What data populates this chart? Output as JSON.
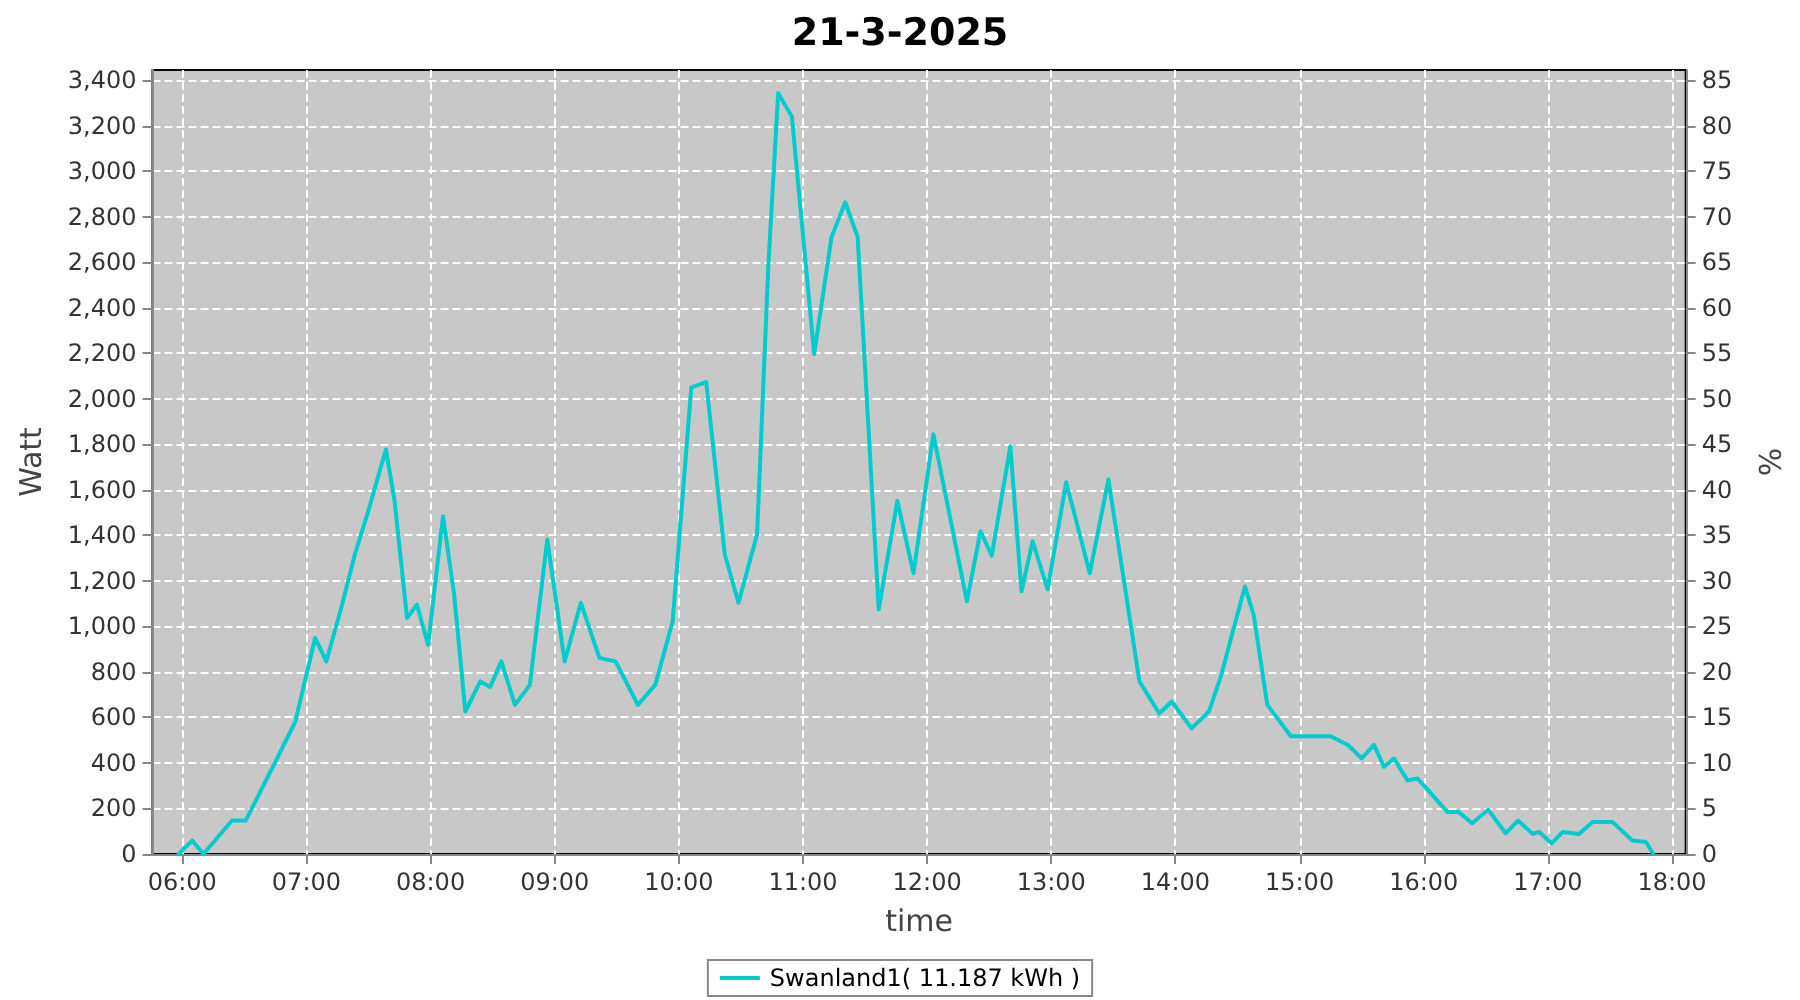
{
  "chart_data": {
    "type": "line",
    "title": "21-3-2025",
    "xlabel": "time",
    "ylabel": "Watt",
    "y2label": "%",
    "xlim": [
      5.76,
      18.11
    ],
    "xticks": [
      {
        "value": 6,
        "label": "06:00"
      },
      {
        "value": 7,
        "label": "07:00"
      },
      {
        "value": 8,
        "label": "08:00"
      },
      {
        "value": 9,
        "label": "09:00"
      },
      {
        "value": 10,
        "label": "10:00"
      },
      {
        "value": 11,
        "label": "11:00"
      },
      {
        "value": 12,
        "label": "12:00"
      },
      {
        "value": 13,
        "label": "13:00"
      },
      {
        "value": 14,
        "label": "14:00"
      },
      {
        "value": 15,
        "label": "15:00"
      },
      {
        "value": 16,
        "label": "16:00"
      },
      {
        "value": 17,
        "label": "17:00"
      },
      {
        "value": 18,
        "label": "18:00"
      }
    ],
    "ylim": [
      0,
      3444
    ],
    "yticks": [
      0,
      200,
      400,
      600,
      800,
      {
        "value": 1000,
        "label": "1,000"
      },
      {
        "value": 1200,
        "label": "1,200"
      },
      {
        "value": 1400,
        "label": "1,400"
      },
      {
        "value": 1600,
        "label": "1,600"
      },
      {
        "value": 1800,
        "label": "1,800"
      },
      {
        "value": 2000,
        "label": "2,000"
      },
      {
        "value": 2200,
        "label": "2,200"
      },
      {
        "value": 2400,
        "label": "2,400"
      },
      {
        "value": 2600,
        "label": "2,600"
      },
      {
        "value": 2800,
        "label": "2,800"
      },
      {
        "value": 3000,
        "label": "3,000"
      },
      {
        "value": 3200,
        "label": "3,200"
      },
      {
        "value": 3400,
        "label": "3,400"
      }
    ],
    "y2lim": [
      0,
      86.1
    ],
    "y2ticks": [
      0,
      5,
      10,
      15,
      20,
      25,
      30,
      35,
      40,
      45,
      50,
      55,
      60,
      65,
      70,
      75,
      80,
      85
    ],
    "grid": true,
    "legend": "bottom",
    "marker": "none",
    "line_style": "solid",
    "series": [
      {
        "name": "Swanland1( 11.187 kWh )",
        "color": "#00cccc",
        "x": [
          5.97,
          6.08,
          6.17,
          6.4,
          6.51,
          6.75,
          6.91,
          7.07,
          7.16,
          7.28,
          7.39,
          7.49,
          7.64,
          7.71,
          7.81,
          7.89,
          7.98,
          8.1,
          8.19,
          8.28,
          8.4,
          8.48,
          8.57,
          8.68,
          8.8,
          8.94,
          9.08,
          9.21,
          9.36,
          9.49,
          9.67,
          9.81,
          9.95,
          10.1,
          10.22,
          10.37,
          10.48,
          10.63,
          10.72,
          10.8,
          10.91,
          11.09,
          11.23,
          11.34,
          11.44,
          11.61,
          11.76,
          11.89,
          12.05,
          12.32,
          12.43,
          12.52,
          12.67,
          12.76,
          12.85,
          12.97,
          13.12,
          13.31,
          13.46,
          13.71,
          13.87,
          13.97,
          14.13,
          14.27,
          14.37,
          14.47,
          14.56,
          14.63,
          14.74,
          14.93,
          15.12,
          15.25,
          15.39,
          15.5,
          15.6,
          15.68,
          15.76,
          15.87,
          15.95,
          16.19,
          16.28,
          16.39,
          16.52,
          16.66,
          16.76,
          16.88,
          16.93,
          17.03,
          17.12,
          17.25,
          17.36,
          17.52,
          17.68,
          17.79,
          17.85
        ],
        "values": [
          0,
          59,
          0,
          147,
          147,
          405,
          581,
          949,
          846,
          1081,
          1316,
          1492,
          1777,
          1551,
          1037,
          1095,
          919,
          1483,
          1139,
          626,
          758,
          734,
          846,
          655,
          743,
          1381,
          846,
          1104,
          861,
          846,
          655,
          743,
          1022,
          2050,
          2073,
          1316,
          1104,
          1404,
          2579,
          3342,
          3240,
          2196,
          2711,
          2863,
          2711,
          1075,
          1551,
          1233,
          1844,
          1110,
          1418,
          1310,
          1791,
          1154,
          1374,
          1163,
          1633,
          1233,
          1645,
          758,
          617,
          670,
          552,
          626,
          787,
          993,
          1175,
          1051,
          655,
          517,
          517,
          517,
          479,
          420,
          479,
          382,
          420,
          323,
          332,
          185,
          185,
          135,
          194,
          91,
          147,
          88,
          97,
          47,
          97,
          88,
          141,
          141,
          59,
          53,
          0
        ]
      }
    ]
  }
}
